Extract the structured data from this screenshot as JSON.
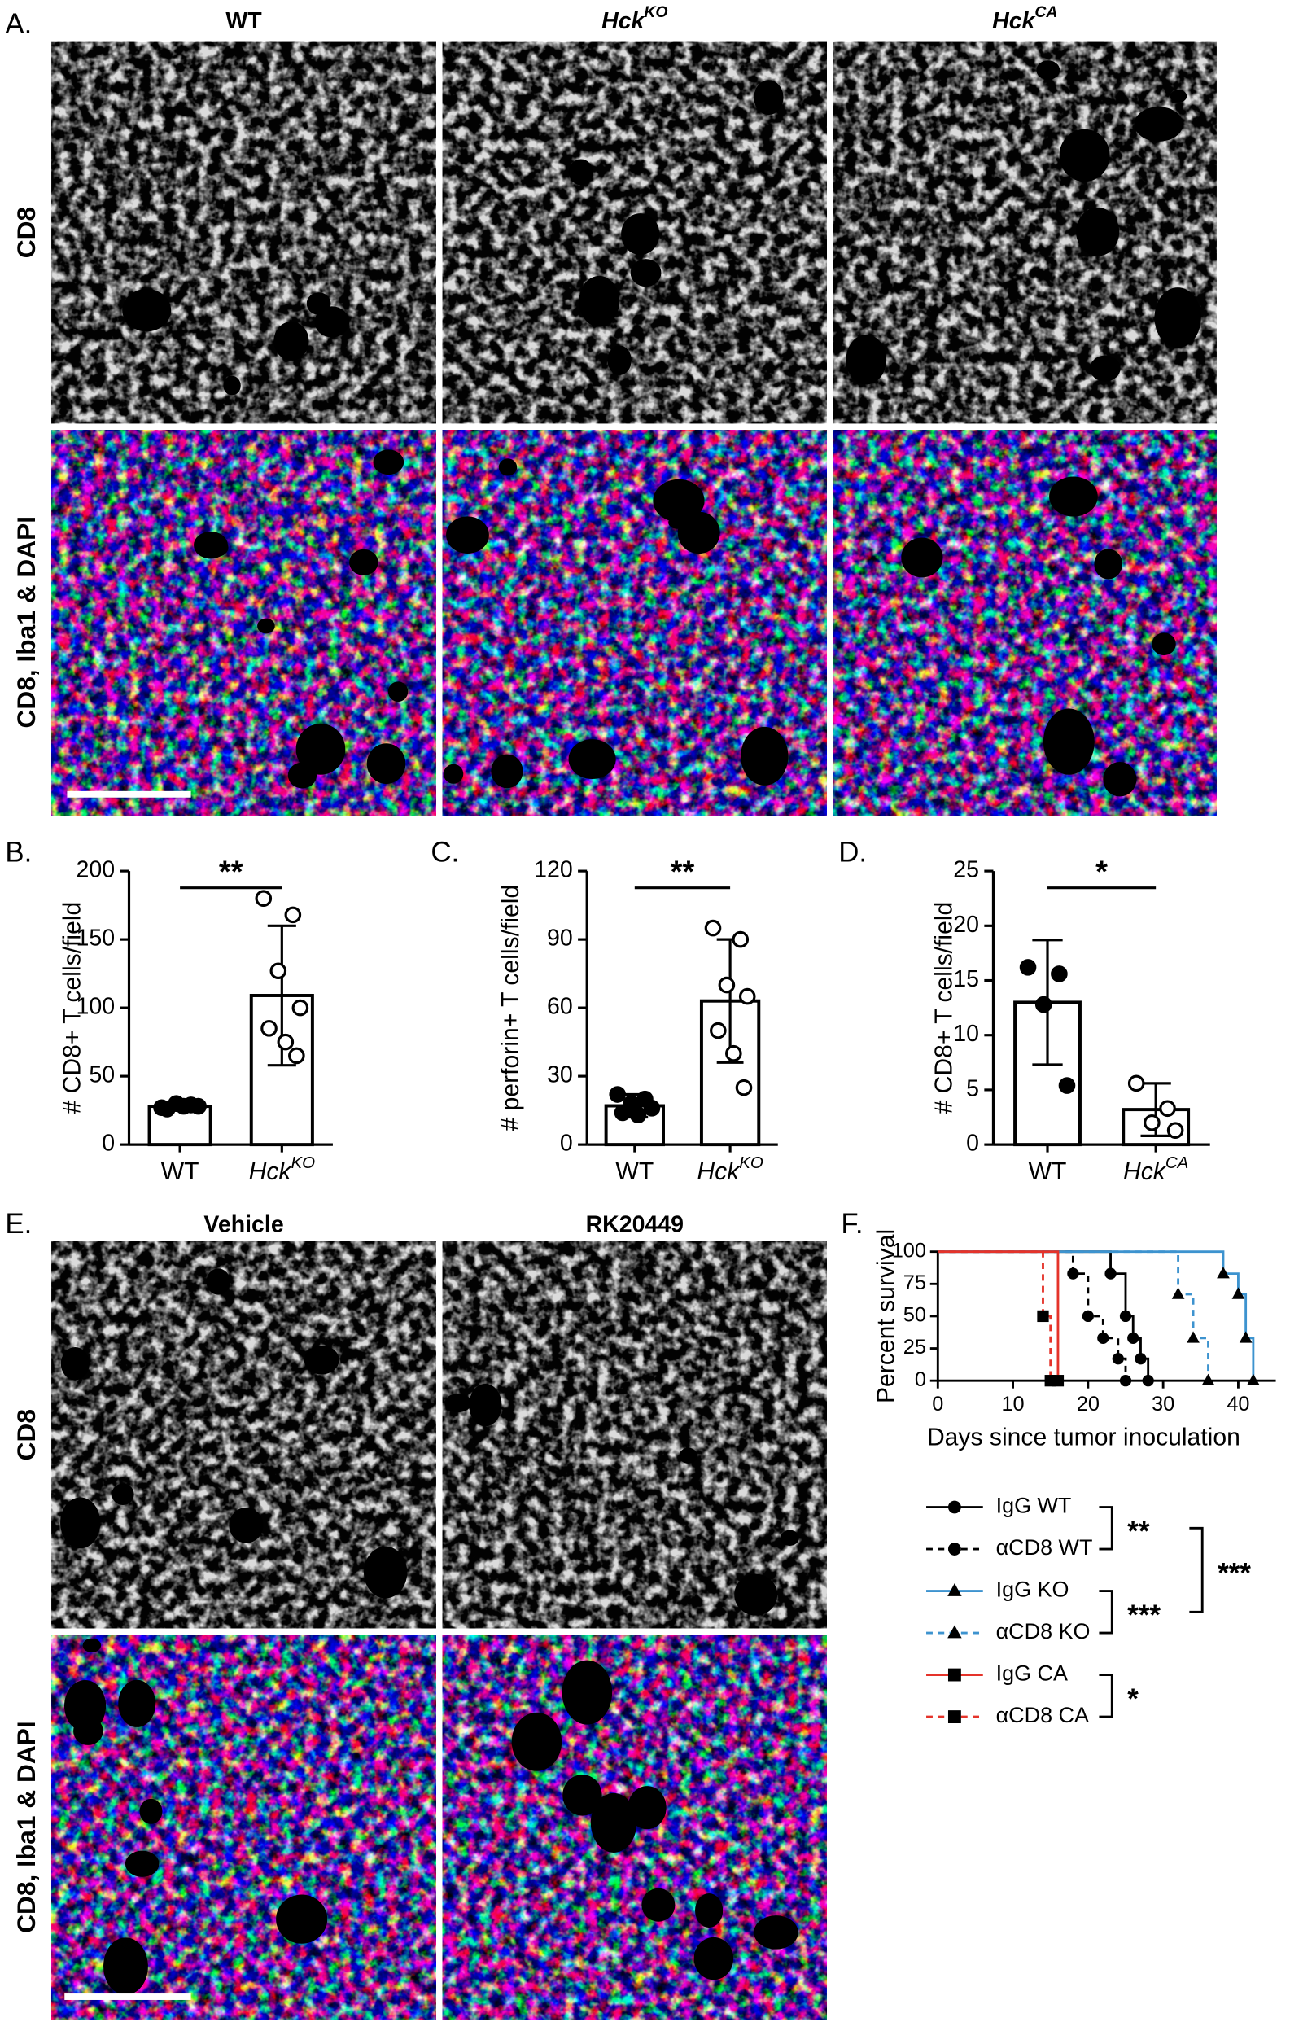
{
  "panel_a": {
    "label": "A.",
    "columns": [
      {
        "text": "WT"
      },
      {
        "text": "Hck",
        "sup": "KO"
      },
      {
        "text": "Hck",
        "sup": "CA"
      }
    ],
    "rows": [
      "CD8",
      "CD8, Iba1 & DAPI"
    ]
  },
  "chart_data": [
    {
      "type": "bar",
      "label": "B.",
      "y_label": "# CD8+ T cells/field",
      "categories": [
        {
          "text": "WT"
        },
        {
          "text": "Hck",
          "sup": "KO"
        }
      ],
      "values": [
        28,
        109
      ],
      "errors": [
        2.5,
        51
      ],
      "points": [
        [
          27,
          29,
          30,
          28,
          26,
          28
        ],
        [
          180,
          168,
          127,
          100,
          85,
          75,
          65
        ]
      ],
      "point_styles": [
        "filled",
        "open"
      ],
      "ylim": [
        0,
        200
      ],
      "yticks": [
        0,
        50,
        100,
        150,
        200
      ],
      "significance": "**"
    },
    {
      "type": "bar",
      "label": "C.",
      "y_label": "# perforin+ T cells/field",
      "categories": [
        {
          "text": "WT"
        },
        {
          "text": "Hck",
          "sup": "KO"
        }
      ],
      "values": [
        17,
        63
      ],
      "errors": [
        5,
        27
      ],
      "points": [
        [
          22,
          20,
          18,
          16,
          14,
          13
        ],
        [
          95,
          90,
          70,
          65,
          50,
          40,
          25
        ]
      ],
      "point_styles": [
        "filled",
        "open"
      ],
      "ylim": [
        0,
        120
      ],
      "yticks": [
        0,
        30,
        60,
        90,
        120
      ],
      "significance": "**"
    },
    {
      "type": "bar",
      "label": "D.",
      "y_label": "# CD8+ T cells/field",
      "categories": [
        {
          "text": "WT"
        },
        {
          "text": "Hck",
          "sup": "CA"
        }
      ],
      "values": [
        13,
        3.2
      ],
      "errors": [
        5.7,
        2.4
      ],
      "points": [
        [
          16.2,
          15.6,
          12.8,
          5.4
        ],
        [
          5.6,
          3.3,
          2.0,
          1.3
        ]
      ],
      "point_styles": [
        "filled",
        "open"
      ],
      "ylim": [
        0,
        25
      ],
      "yticks": [
        0,
        5,
        10,
        15,
        20,
        25
      ],
      "significance": "*"
    },
    {
      "type": "survival",
      "label": "F.",
      "x_label": "Days since tumor inoculation",
      "y_label": "Percent survival",
      "xlim": [
        0,
        45
      ],
      "xticks": [
        0,
        10,
        20,
        30,
        40
      ],
      "ylim": [
        0,
        100
      ],
      "yticks": [
        0,
        25,
        50,
        75,
        100
      ],
      "series": [
        {
          "name": "IgG WT",
          "color": "#000000",
          "dashed": false,
          "marker": "circle",
          "x": [
            0,
            23,
            25,
            26,
            27,
            28
          ],
          "values": [
            100,
            83,
            50,
            33,
            17,
            0
          ]
        },
        {
          "name": "αCD8 WT",
          "color": "#000000",
          "dashed": true,
          "marker": "circle",
          "x": [
            0,
            18,
            20,
            22,
            24,
            25
          ],
          "values": [
            100,
            83,
            50,
            33,
            17,
            0
          ]
        },
        {
          "name": "IgG KO",
          "color": "#3d93cf",
          "dashed": false,
          "marker": "triangle",
          "x": [
            0,
            38,
            40,
            41,
            42
          ],
          "values": [
            100,
            83,
            67,
            33,
            0
          ]
        },
        {
          "name": "αCD8 KO",
          "color": "#3d93cf",
          "dashed": true,
          "marker": "triangle",
          "x": [
            0,
            32,
            34,
            36
          ],
          "values": [
            100,
            67,
            33,
            0
          ]
        },
        {
          "name": "IgG CA",
          "color": "#e5332a",
          "dashed": false,
          "marker": "square",
          "x": [
            0,
            16
          ],
          "values": [
            100,
            0
          ]
        },
        {
          "name": "αCD8 CA",
          "color": "#e5332a",
          "dashed": true,
          "marker": "square",
          "x": [
            0,
            14,
            15
          ],
          "values": [
            100,
            50,
            0
          ]
        }
      ],
      "comparisons": [
        "**",
        "***",
        "*",
        "***"
      ]
    }
  ],
  "panel_e": {
    "label": "E.",
    "columns": [
      "Vehicle",
      "RK20449"
    ],
    "rows": [
      "CD8",
      "CD8, Iba1 & DAPI"
    ]
  }
}
